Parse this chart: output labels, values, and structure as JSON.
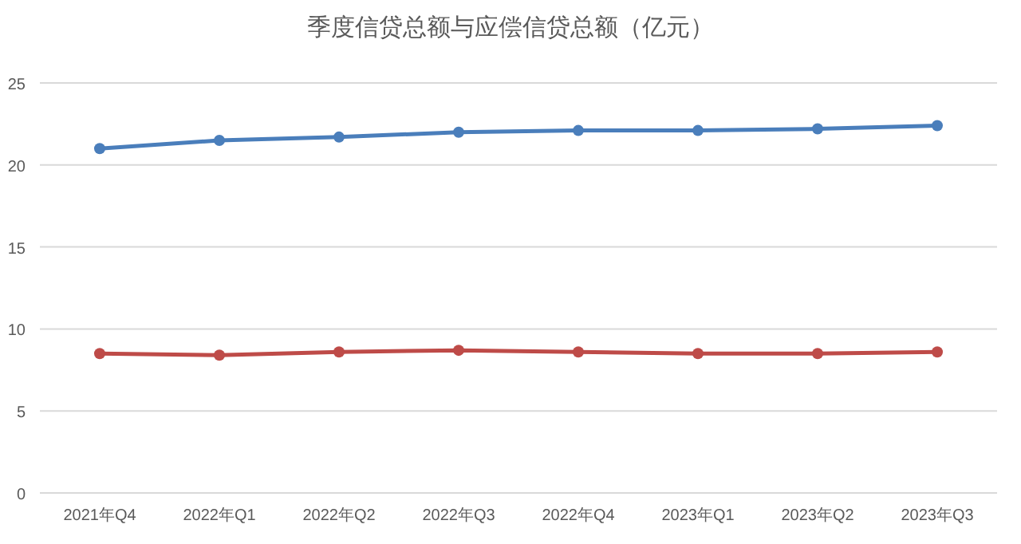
{
  "chart_data": {
    "type": "line",
    "title": "季度信贷总额与应偿信贷总额（亿元）",
    "categories": [
      "2021年Q4",
      "2022年Q1",
      "2022年Q2",
      "2022年Q3",
      "2022年Q4",
      "2023年Q1",
      "2023年Q2",
      "2023年Q3"
    ],
    "series": [
      {
        "color": "#4a7ebb",
        "values": [
          21.0,
          21.5,
          21.7,
          22.0,
          22.1,
          22.1,
          22.2,
          22.4
        ]
      },
      {
        "color": "#be4b48",
        "values": [
          8.5,
          8.4,
          8.6,
          8.7,
          8.6,
          8.5,
          8.5,
          8.6
        ]
      }
    ],
    "ylim": [
      0,
      25
    ],
    "yticks": [
      0,
      5,
      10,
      15,
      20,
      25
    ],
    "grid": "y",
    "marker": "circle",
    "line_style": "solid"
  }
}
